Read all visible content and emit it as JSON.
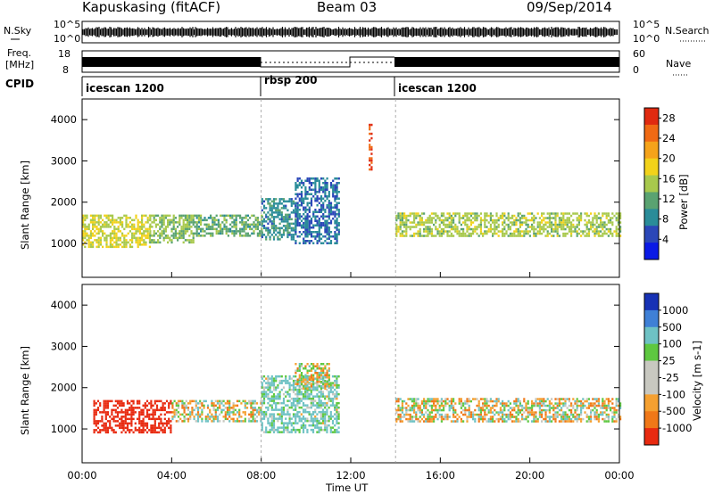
{
  "header": {
    "station": "Kapuskasing (fitACF)",
    "beam": "Beam 03",
    "date": "09/Sep/2014"
  },
  "noise_panel": {
    "left_label": "N.Sky",
    "right_label": "N.Search",
    "y_ticks_left": [
      "10^5",
      "10^0"
    ],
    "y_ticks_right": [
      "10^5",
      "10^0"
    ]
  },
  "freq_panel": {
    "left_label_line1": "Freq.",
    "left_label_line2": "[MHz]",
    "right_label": "Nave",
    "y_ticks_left": [
      "18",
      "8"
    ],
    "y_ticks_right": [
      "60",
      "0"
    ]
  },
  "cpid_panel": {
    "label": "CPID",
    "segments": [
      {
        "name": "icescan 1200",
        "start_hour": 0,
        "end_hour": 8
      },
      {
        "name": "rbsp 200",
        "start_hour": 8,
        "end_hour": 14
      },
      {
        "name": "icescan 1200",
        "start_hour": 14,
        "end_hour": 24
      }
    ]
  },
  "colors": {
    "power_scale": [
      "#0a1ae6",
      "#2b47b8",
      "#2a8c99",
      "#5aa371",
      "#a8c94d",
      "#f2d21a",
      "#f5a31a",
      "#f06a14",
      "#e02a10"
    ],
    "velocity_scale": [
      "#1732b5",
      "#3f80d6",
      "#6ec2c4",
      "#5ec840",
      "#c8c8c0",
      "#c8c8c0",
      "#f5a030",
      "#f07818",
      "#e82a10"
    ]
  },
  "chart_data": [
    {
      "type": "heatmap",
      "title": "",
      "xlabel": "Time UT",
      "ylabel": "Slant Range [km]",
      "x_unit": "hours UT",
      "xlim": [
        0,
        24
      ],
      "ylim": [
        180,
        4500
      ],
      "x_ticks": [
        "00:00",
        "04:00",
        "08:00",
        "12:00",
        "16:00",
        "20:00",
        "00:00"
      ],
      "y_ticks": [
        "1000",
        "2000",
        "3000",
        "4000"
      ],
      "colorbar": {
        "label": "Power [dB]",
        "ticks": [
          "4",
          "8",
          "12",
          "16",
          "20",
          "24",
          "28"
        ],
        "range": [
          0,
          30
        ]
      },
      "regions": [
        {
          "t0": 0.0,
          "t1": 3.0,
          "r0": 900,
          "r1": 1700,
          "value": 17
        },
        {
          "t0": 3.0,
          "t1": 5.0,
          "r0": 1000,
          "r1": 1700,
          "value": 14
        },
        {
          "t0": 5.0,
          "t1": 8.0,
          "r0": 1200,
          "r1": 1700,
          "value": 12
        },
        {
          "t0": 8.0,
          "t1": 9.5,
          "r0": 1100,
          "r1": 2100,
          "value": 9
        },
        {
          "t0": 9.5,
          "t1": 11.5,
          "r0": 1000,
          "r1": 2600,
          "value": 7
        },
        {
          "t0": 12.8,
          "t1": 12.95,
          "r0": 2800,
          "r1": 3900,
          "value": 27
        },
        {
          "t0": 14.0,
          "t1": 24.0,
          "r0": 1200,
          "r1": 1750,
          "value": 15
        }
      ]
    },
    {
      "type": "heatmap",
      "title": "",
      "xlabel": "Time UT",
      "ylabel": "Slant Range [km]",
      "x_unit": "hours UT",
      "xlim": [
        0,
        24
      ],
      "ylim": [
        180,
        4500
      ],
      "x_ticks": [
        "00:00",
        "04:00",
        "08:00",
        "12:00",
        "16:00",
        "20:00",
        "00:00"
      ],
      "y_ticks": [
        "1000",
        "2000",
        "3000",
        "4000"
      ],
      "colorbar": {
        "label": "Velocity [m s-1]",
        "ticks": [
          "1000",
          "500",
          "100",
          "25",
          "-25",
          "-100",
          "-500",
          "-1000"
        ],
        "range": [
          -1000,
          1000
        ]
      },
      "regions": [
        {
          "t0": 0.5,
          "t1": 4.0,
          "r0": 900,
          "r1": 1700,
          "value": -700
        },
        {
          "t0": 4.0,
          "t1": 8.0,
          "r0": 1200,
          "r1": 1700,
          "value": 10
        },
        {
          "t0": 8.0,
          "t1": 11.5,
          "r0": 900,
          "r1": 2300,
          "value": 150
        },
        {
          "t0": 9.5,
          "t1": 11.0,
          "r0": 2000,
          "r1": 2600,
          "value": 0
        },
        {
          "t0": 14.0,
          "t1": 24.0,
          "r0": 1200,
          "r1": 1750,
          "value": 0
        }
      ]
    }
  ],
  "axes": {
    "xlabel": "Time UT"
  }
}
